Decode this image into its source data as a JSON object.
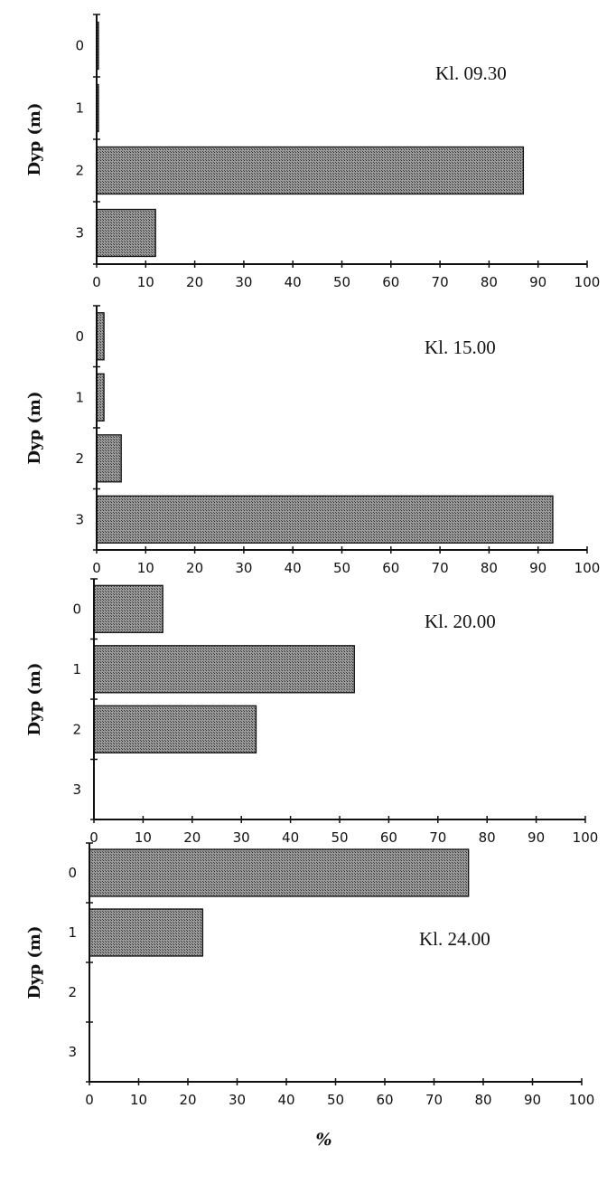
{
  "chart_data": [
    {
      "type": "bar",
      "orientation": "horizontal",
      "title": "Kl. 09.30",
      "ylabel": "Dyp (m)",
      "xlabel": "",
      "categories": [
        "0",
        "1",
        "2",
        "3"
      ],
      "values": [
        0.3,
        0.3,
        87,
        12
      ],
      "xlim": [
        0,
        100
      ],
      "xticks": [
        "0",
        "10",
        "20",
        "30",
        "40",
        "50",
        "60",
        "70",
        "80",
        "90",
        "100"
      ]
    },
    {
      "type": "bar",
      "orientation": "horizontal",
      "title": "Kl. 15.00",
      "ylabel": "Dyp (m)",
      "xlabel": "",
      "categories": [
        "0",
        "1",
        "2",
        "3"
      ],
      "values": [
        1.5,
        1.5,
        5,
        93
      ],
      "xlim": [
        0,
        100
      ],
      "xticks": [
        "0",
        "10",
        "20",
        "30",
        "40",
        "50",
        "60",
        "70",
        "80",
        "90",
        "100"
      ]
    },
    {
      "type": "bar",
      "orientation": "horizontal",
      "title": "Kl. 20.00",
      "ylabel": "Dyp (m)",
      "xlabel": "",
      "categories": [
        "0",
        "1",
        "2",
        "3"
      ],
      "values": [
        14,
        53,
        33,
        0
      ],
      "xlim": [
        0,
        100
      ],
      "xticks": [
        "0",
        "10",
        "20",
        "30",
        "40",
        "50",
        "60",
        "70",
        "80",
        "90",
        "100"
      ]
    },
    {
      "type": "bar",
      "orientation": "horizontal",
      "title": "Kl. 24.00",
      "ylabel": "Dyp (m)",
      "xlabel": "%",
      "categories": [
        "0",
        "1",
        "2",
        "3"
      ],
      "values": [
        77,
        23,
        0,
        0
      ],
      "xlim": [
        0,
        100
      ],
      "xticks": [
        "0",
        "10",
        "20",
        "30",
        "40",
        "50",
        "60",
        "70",
        "80",
        "90",
        "100"
      ]
    }
  ],
  "colors": {
    "bar_fill": "#7a7a7a",
    "bar_stroke": "#111111",
    "axis": "#111111"
  }
}
